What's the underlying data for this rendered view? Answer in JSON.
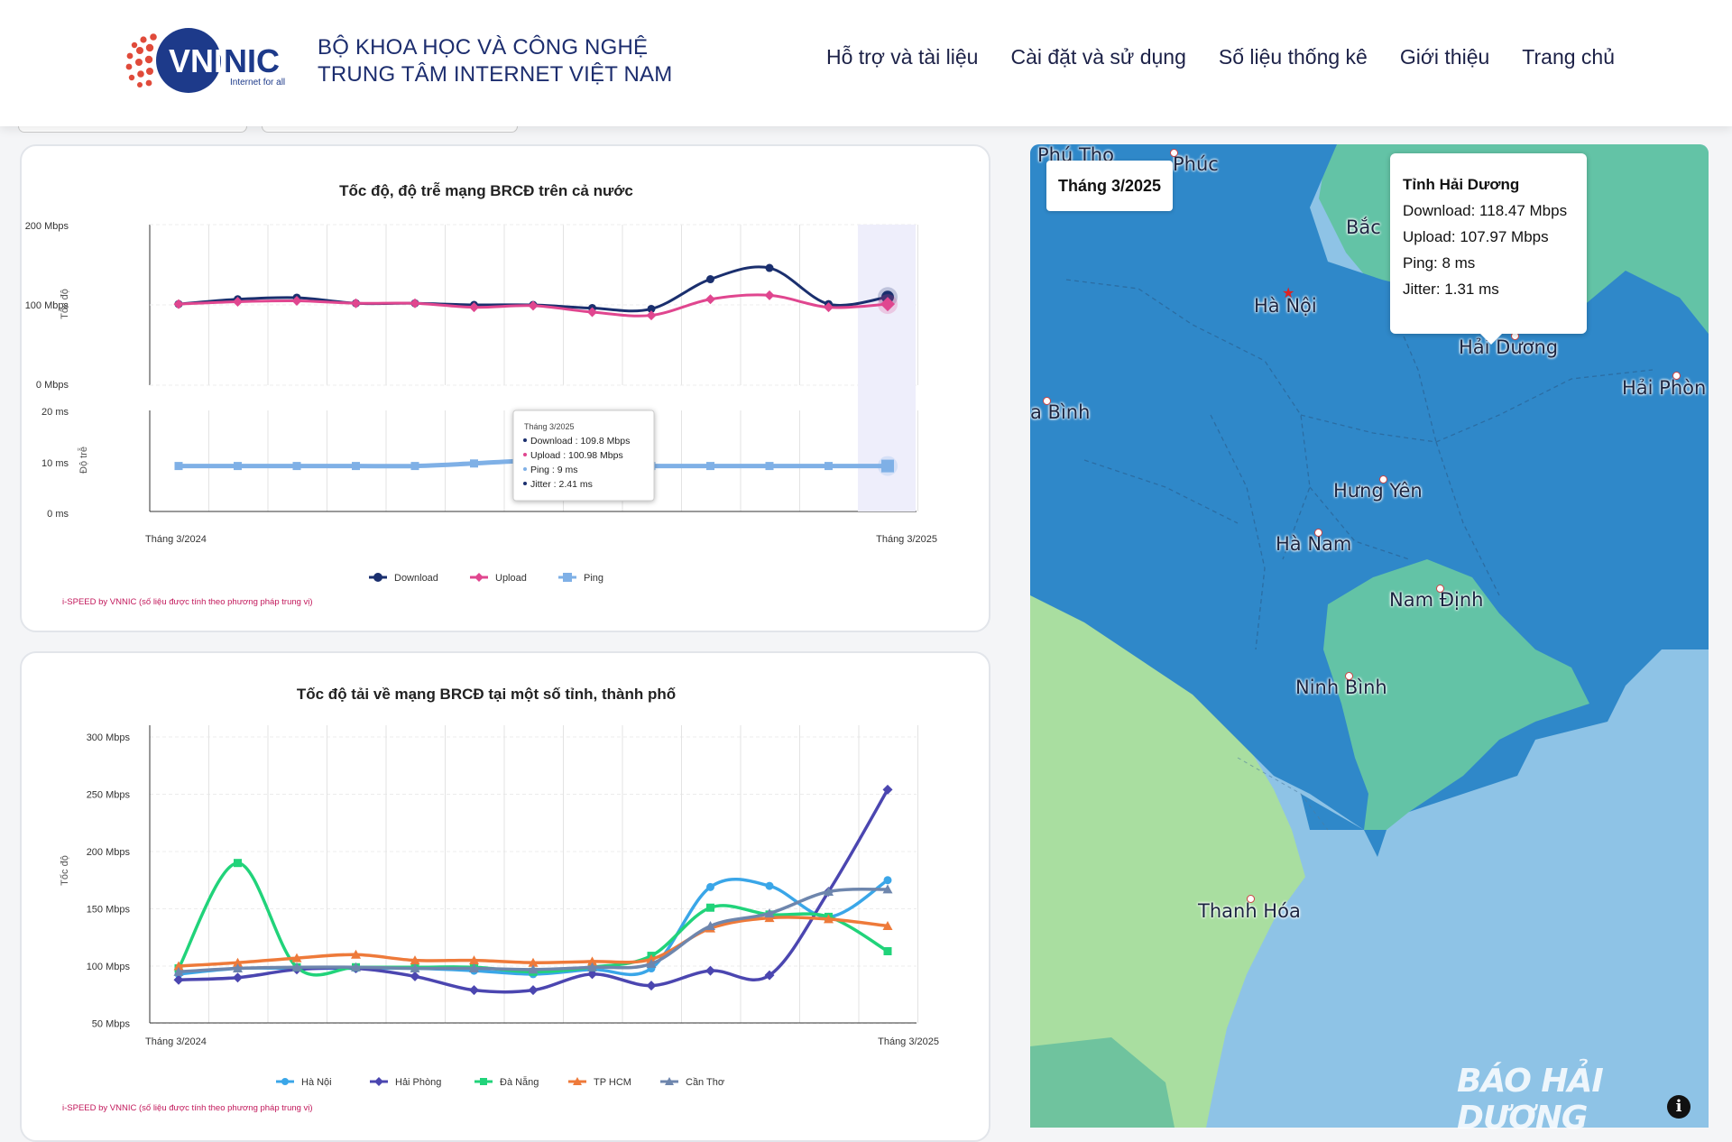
{
  "header": {
    "logo_text": "VNNIC",
    "logo_tagline": "Internet for all",
    "org_line1": "BỘ KHOA HỌC VÀ CÔNG NGHỆ",
    "org_line2": "TRUNG TÂM INTERNET VIỆT NAM",
    "nav": [
      "Hỗ trợ và tài liệu",
      "Cài đặt và sử dụng",
      "Số liệu thống kê",
      "Giới thiệu",
      "Trang chủ"
    ]
  },
  "chart1": {
    "title": "Tốc độ, độ trễ mạng BRCĐ trên cả nước",
    "speed_ylabel": "Tốc độ",
    "ping_ylabel": "Độ trễ",
    "speed_ticks": [
      "200 Mbps",
      "100 Mbps",
      "0 Mbps"
    ],
    "ping_ticks": [
      "20 ms",
      "10 ms",
      "0 ms"
    ],
    "x_start": "Tháng 3/2024",
    "x_end": "Tháng 3/2025",
    "legend": [
      "Download",
      "Upload",
      "Ping"
    ],
    "colors": {
      "download": "#1a2f6e",
      "upload": "#e0468f",
      "ping": "#7fb0e6"
    },
    "footnote": "i-SPEED by VNNIC (số liệu được tính theo phương pháp trung vị)",
    "tooltip": {
      "title": "Tháng 3/2025",
      "lines": [
        "Download : 109.8 Mbps",
        "Upload : 100.98 Mbps",
        "Ping : 9 ms",
        "Jitter : 2.41 ms"
      ]
    }
  },
  "chart2": {
    "title": "Tốc độ tải về mạng BRCĐ tại một số tỉnh, thành phố",
    "ylabel": "Tốc độ",
    "ticks": [
      "300 Mbps",
      "250 Mbps",
      "200 Mbps",
      "150 Mbps",
      "100 Mbps",
      "50 Mbps"
    ],
    "x_start": "Tháng 3/2024",
    "x_end": "Tháng 3/2025",
    "footnote": "i-SPEED by VNNIC (số liệu được tính theo phương pháp trung vị)"
  },
  "chart_data": [
    {
      "type": "line",
      "title": "Tốc độ, độ trễ mạng BRCĐ trên cả nước",
      "x": [
        "Tháng 3/2024",
        "",
        "",
        "",
        "",
        "",
        "",
        "",
        "",
        "",
        "",
        "",
        "Tháng 3/2025"
      ],
      "series": [
        {
          "name": "Download",
          "axis": "speed",
          "values": [
            101,
            107,
            109,
            102,
            102,
            100,
            100,
            96,
            95,
            132,
            146,
            101,
            109.8
          ]
        },
        {
          "name": "Upload",
          "axis": "speed",
          "values": [
            101,
            104,
            105,
            102,
            102,
            97,
            99,
            91,
            87,
            107,
            112,
            97,
            100.98
          ]
        },
        {
          "name": "Ping",
          "axis": "ping",
          "values": [
            9,
            9,
            9,
            9,
            9,
            9.5,
            10,
            9,
            9,
            9,
            9,
            9,
            9
          ]
        }
      ],
      "ylim_speed": [
        0,
        200
      ],
      "ylim_ping": [
        0,
        20
      ]
    },
    {
      "type": "line",
      "title": "Tốc độ tải về mạng BRCĐ tại một số tỉnh, thành phố",
      "x": [
        "Tháng 3/2024",
        "",
        "",
        "",
        "",
        "",
        "",
        "",
        "",
        "",
        "",
        "",
        "Tháng 3/2025"
      ],
      "series": [
        {
          "name": "Hà Nội",
          "color": "#3aa6e8",
          "values": [
            93,
            98,
            98,
            98,
            98,
            96,
            93,
            97,
            98,
            169,
            170,
            143,
            175
          ]
        },
        {
          "name": "Hải Phòng",
          "color": "#4b46b0",
          "values": [
            88,
            90,
            97,
            98,
            91,
            79,
            79,
            93,
            83,
            96,
            92,
            165,
            254
          ]
        },
        {
          "name": "Đà Nẵng",
          "color": "#21d37a",
          "values": [
            98,
            190,
            99,
            99,
            99,
            99,
            95,
            99,
            109,
            151,
            145,
            143,
            113
          ]
        },
        {
          "name": "TP HCM",
          "color": "#ee7a3a",
          "values": [
            100,
            103,
            107,
            110,
            105,
            105,
            103,
            104,
            106,
            133,
            142,
            141,
            135
          ]
        },
        {
          "name": "Cần Thơ",
          "color": "#6e86ad",
          "values": [
            95,
            98,
            99,
            99,
            98,
            98,
            97,
            99,
            102,
            135,
            146,
            165,
            167
          ]
        }
      ],
      "ylim": [
        50,
        300
      ]
    }
  ],
  "map": {
    "month_box": "Tháng 3/2025",
    "tooltip": {
      "title": "Tỉnh Hải Dương",
      "lines": [
        "Download: 118.47 Mbps",
        "Upload: 107.97 Mbps",
        "Ping: 8 ms",
        "Jitter: 1.31 ms"
      ]
    },
    "labels": [
      "Phú Thọ",
      "Phúc",
      "Bắc",
      "Hà Nội",
      "Hải Dương",
      "Hải Phòn",
      "a Bình",
      "Hưng Yên",
      "Hà Nam",
      "Nam Định",
      "Ninh Bình",
      "Thanh Hóa"
    ],
    "watermark": "BÁO HẢI DƯƠNG"
  }
}
